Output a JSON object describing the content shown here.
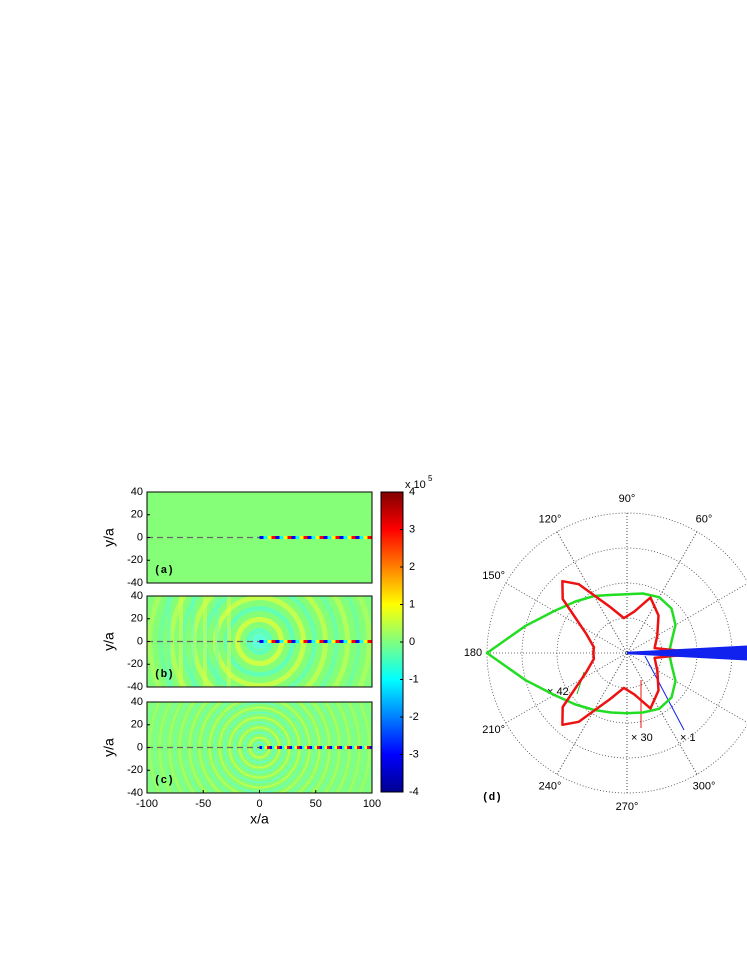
{
  "chart_data": [
    {
      "type": "heatmap",
      "label": "(a)",
      "ylabel": "y/a",
      "xlim": [
        -100,
        100
      ],
      "ylim": [
        -40,
        40
      ],
      "yticks": [
        40,
        20,
        0,
        -20,
        -40
      ]
    },
    {
      "type": "heatmap",
      "label": "(b)",
      "ylabel": "y/a",
      "xlim": [
        -100,
        100
      ],
      "ylim": [
        -40,
        40
      ],
      "yticks": [
        40,
        20,
        0,
        -20,
        -40
      ]
    },
    {
      "type": "heatmap",
      "label": "(c)",
      "ylabel": "y/a",
      "xlabel": "x/a",
      "xlim": [
        -100,
        100
      ],
      "ylim": [
        -40,
        40
      ],
      "yticks": [
        40,
        20,
        0,
        -20,
        -40
      ],
      "xticks": [
        -100,
        -50,
        0,
        50,
        100
      ]
    },
    {
      "type": "colorbar",
      "label": "x 10",
      "exponent": "5",
      "ylim": [
        -4,
        4
      ],
      "yticks": [
        4,
        3,
        2,
        1,
        0,
        -1,
        -2,
        -3,
        -4
      ]
    },
    {
      "type": "polar",
      "label": "(d)",
      "rlim": [
        0,
        1
      ],
      "rticks": [
        0.25,
        0.5,
        0.75,
        1
      ],
      "thetaticks": [
        {
          "value": 60,
          "label": "60°"
        },
        {
          "value": 90,
          "label": "90°"
        },
        {
          "value": 120,
          "label": "120°"
        },
        {
          "value": 150,
          "label": "150°"
        },
        {
          "value": 180,
          "label": "180"
        },
        {
          "value": 210,
          "label": "210°"
        },
        {
          "value": 240,
          "label": "240°"
        },
        {
          "value": 270,
          "label": "270°"
        },
        {
          "value": 300,
          "label": "300°"
        }
      ],
      "series": [
        {
          "color": "#22dd22",
          "theta": [
            0,
            15,
            30,
            45,
            60,
            75,
            90,
            105,
            120,
            135,
            150,
            165,
            180,
            195,
            210,
            225,
            240,
            255,
            270,
            285,
            300,
            315,
            330,
            345,
            360
          ],
          "r": [
            0.3,
            0.33,
            0.4,
            0.45,
            0.46,
            0.44,
            0.42,
            0.43,
            0.47,
            0.52,
            0.6,
            0.75,
            1.0,
            0.75,
            0.6,
            0.52,
            0.47,
            0.44,
            0.43,
            0.44,
            0.46,
            0.45,
            0.4,
            0.33,
            0.3
          ]
        },
        {
          "color": "#ee1111",
          "theta": [
            0,
            3,
            10,
            30,
            50,
            67,
            80,
            95,
            110,
            125,
            132,
            140,
            155,
            170,
            180,
            190,
            205,
            220,
            228,
            235,
            250,
            265,
            280,
            293,
            310,
            330,
            350,
            357,
            360
          ],
          "r": [
            1.1,
            0.35,
            0.2,
            0.25,
            0.35,
            0.43,
            0.3,
            0.25,
            0.35,
            0.6,
            0.69,
            0.6,
            0.32,
            0.24,
            0.24,
            0.24,
            0.32,
            0.6,
            0.69,
            0.6,
            0.35,
            0.25,
            0.3,
            0.43,
            0.35,
            0.25,
            0.2,
            0.35,
            1.1
          ]
        },
        {
          "color": "#1122ee",
          "theta": [
            0,
            3,
            1.5,
            0,
            358.5,
            357,
            0
          ],
          "r": [
            0,
            1.0,
            1.1,
            1.15,
            1.1,
            1.0,
            0
          ]
        }
      ],
      "annotations": [
        {
          "text": "× 42",
          "color": "#22bb22"
        },
        {
          "text": "× 30",
          "color": "#ee1111"
        },
        {
          "text": "× 1",
          "color": "#1122ee"
        }
      ]
    }
  ]
}
